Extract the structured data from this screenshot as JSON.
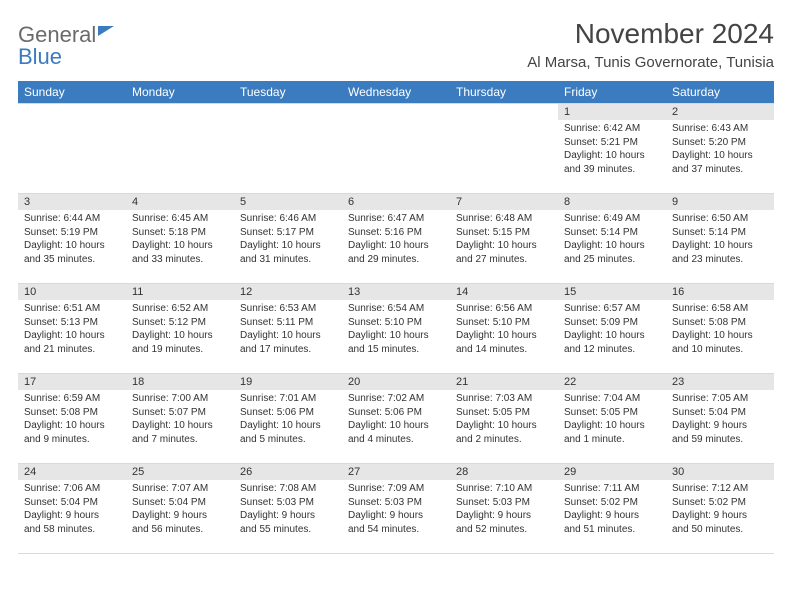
{
  "logo": {
    "text1": "General",
    "text2": "Blue"
  },
  "title": "November 2024",
  "location": "Al Marsa, Tunis Governorate, Tunisia",
  "weekdays": [
    "Sunday",
    "Monday",
    "Tuesday",
    "Wednesday",
    "Thursday",
    "Friday",
    "Saturday"
  ],
  "style": {
    "header_bg": "#3b7bbf",
    "header_fg": "#ffffff",
    "daynum_bg": "#e6e6e6",
    "border_color": "#d9d9d9",
    "body_font_size": 10,
    "title_font_size": 28,
    "location_font_size": 15
  },
  "weeks": [
    [
      {
        "empty": true
      },
      {
        "empty": true
      },
      {
        "empty": true
      },
      {
        "empty": true
      },
      {
        "empty": true
      },
      {
        "n": "1",
        "sunrise": "Sunrise: 6:42 AM",
        "sunset": "Sunset: 5:21 PM",
        "day1": "Daylight: 10 hours",
        "day2": "and 39 minutes."
      },
      {
        "n": "2",
        "sunrise": "Sunrise: 6:43 AM",
        "sunset": "Sunset: 5:20 PM",
        "day1": "Daylight: 10 hours",
        "day2": "and 37 minutes."
      }
    ],
    [
      {
        "n": "3",
        "sunrise": "Sunrise: 6:44 AM",
        "sunset": "Sunset: 5:19 PM",
        "day1": "Daylight: 10 hours",
        "day2": "and 35 minutes."
      },
      {
        "n": "4",
        "sunrise": "Sunrise: 6:45 AM",
        "sunset": "Sunset: 5:18 PM",
        "day1": "Daylight: 10 hours",
        "day2": "and 33 minutes."
      },
      {
        "n": "5",
        "sunrise": "Sunrise: 6:46 AM",
        "sunset": "Sunset: 5:17 PM",
        "day1": "Daylight: 10 hours",
        "day2": "and 31 minutes."
      },
      {
        "n": "6",
        "sunrise": "Sunrise: 6:47 AM",
        "sunset": "Sunset: 5:16 PM",
        "day1": "Daylight: 10 hours",
        "day2": "and 29 minutes."
      },
      {
        "n": "7",
        "sunrise": "Sunrise: 6:48 AM",
        "sunset": "Sunset: 5:15 PM",
        "day1": "Daylight: 10 hours",
        "day2": "and 27 minutes."
      },
      {
        "n": "8",
        "sunrise": "Sunrise: 6:49 AM",
        "sunset": "Sunset: 5:14 PM",
        "day1": "Daylight: 10 hours",
        "day2": "and 25 minutes."
      },
      {
        "n": "9",
        "sunrise": "Sunrise: 6:50 AM",
        "sunset": "Sunset: 5:14 PM",
        "day1": "Daylight: 10 hours",
        "day2": "and 23 minutes."
      }
    ],
    [
      {
        "n": "10",
        "sunrise": "Sunrise: 6:51 AM",
        "sunset": "Sunset: 5:13 PM",
        "day1": "Daylight: 10 hours",
        "day2": "and 21 minutes."
      },
      {
        "n": "11",
        "sunrise": "Sunrise: 6:52 AM",
        "sunset": "Sunset: 5:12 PM",
        "day1": "Daylight: 10 hours",
        "day2": "and 19 minutes."
      },
      {
        "n": "12",
        "sunrise": "Sunrise: 6:53 AM",
        "sunset": "Sunset: 5:11 PM",
        "day1": "Daylight: 10 hours",
        "day2": "and 17 minutes."
      },
      {
        "n": "13",
        "sunrise": "Sunrise: 6:54 AM",
        "sunset": "Sunset: 5:10 PM",
        "day1": "Daylight: 10 hours",
        "day2": "and 15 minutes."
      },
      {
        "n": "14",
        "sunrise": "Sunrise: 6:56 AM",
        "sunset": "Sunset: 5:10 PM",
        "day1": "Daylight: 10 hours",
        "day2": "and 14 minutes."
      },
      {
        "n": "15",
        "sunrise": "Sunrise: 6:57 AM",
        "sunset": "Sunset: 5:09 PM",
        "day1": "Daylight: 10 hours",
        "day2": "and 12 minutes."
      },
      {
        "n": "16",
        "sunrise": "Sunrise: 6:58 AM",
        "sunset": "Sunset: 5:08 PM",
        "day1": "Daylight: 10 hours",
        "day2": "and 10 minutes."
      }
    ],
    [
      {
        "n": "17",
        "sunrise": "Sunrise: 6:59 AM",
        "sunset": "Sunset: 5:08 PM",
        "day1": "Daylight: 10 hours",
        "day2": "and 9 minutes."
      },
      {
        "n": "18",
        "sunrise": "Sunrise: 7:00 AM",
        "sunset": "Sunset: 5:07 PM",
        "day1": "Daylight: 10 hours",
        "day2": "and 7 minutes."
      },
      {
        "n": "19",
        "sunrise": "Sunrise: 7:01 AM",
        "sunset": "Sunset: 5:06 PM",
        "day1": "Daylight: 10 hours",
        "day2": "and 5 minutes."
      },
      {
        "n": "20",
        "sunrise": "Sunrise: 7:02 AM",
        "sunset": "Sunset: 5:06 PM",
        "day1": "Daylight: 10 hours",
        "day2": "and 4 minutes."
      },
      {
        "n": "21",
        "sunrise": "Sunrise: 7:03 AM",
        "sunset": "Sunset: 5:05 PM",
        "day1": "Daylight: 10 hours",
        "day2": "and 2 minutes."
      },
      {
        "n": "22",
        "sunrise": "Sunrise: 7:04 AM",
        "sunset": "Sunset: 5:05 PM",
        "day1": "Daylight: 10 hours",
        "day2": "and 1 minute."
      },
      {
        "n": "23",
        "sunrise": "Sunrise: 7:05 AM",
        "sunset": "Sunset: 5:04 PM",
        "day1": "Daylight: 9 hours",
        "day2": "and 59 minutes."
      }
    ],
    [
      {
        "n": "24",
        "sunrise": "Sunrise: 7:06 AM",
        "sunset": "Sunset: 5:04 PM",
        "day1": "Daylight: 9 hours",
        "day2": "and 58 minutes."
      },
      {
        "n": "25",
        "sunrise": "Sunrise: 7:07 AM",
        "sunset": "Sunset: 5:04 PM",
        "day1": "Daylight: 9 hours",
        "day2": "and 56 minutes."
      },
      {
        "n": "26",
        "sunrise": "Sunrise: 7:08 AM",
        "sunset": "Sunset: 5:03 PM",
        "day1": "Daylight: 9 hours",
        "day2": "and 55 minutes."
      },
      {
        "n": "27",
        "sunrise": "Sunrise: 7:09 AM",
        "sunset": "Sunset: 5:03 PM",
        "day1": "Daylight: 9 hours",
        "day2": "and 54 minutes."
      },
      {
        "n": "28",
        "sunrise": "Sunrise: 7:10 AM",
        "sunset": "Sunset: 5:03 PM",
        "day1": "Daylight: 9 hours",
        "day2": "and 52 minutes."
      },
      {
        "n": "29",
        "sunrise": "Sunrise: 7:11 AM",
        "sunset": "Sunset: 5:02 PM",
        "day1": "Daylight: 9 hours",
        "day2": "and 51 minutes."
      },
      {
        "n": "30",
        "sunrise": "Sunrise: 7:12 AM",
        "sunset": "Sunset: 5:02 PM",
        "day1": "Daylight: 9 hours",
        "day2": "and 50 minutes."
      }
    ]
  ]
}
